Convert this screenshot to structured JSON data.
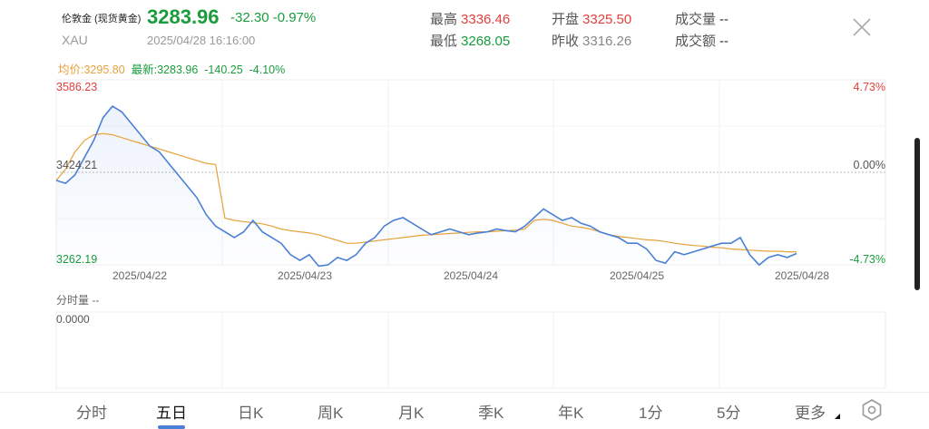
{
  "instrument": {
    "name": "伦敦金 (现货黄金)",
    "code": "XAU",
    "price": "3283.96",
    "change": "-32.30 -0.97%",
    "timestamp": "2025/04/28 16:16:00"
  },
  "stats": {
    "high_label": "最高",
    "high_value": "3336.46",
    "low_label": "最低",
    "low_value": "3268.05",
    "open_label": "开盘",
    "open_value": "3325.50",
    "prev_close_label": "昨收",
    "prev_close_value": "3316.26",
    "volume_label": "成交量",
    "volume_value": "--",
    "turnover_label": "成交额",
    "turnover_value": "--"
  },
  "summary": {
    "avg_price": "均价:3295.80",
    "latest": "最新:3283.96",
    "change": "-140.25",
    "pct": "-4.10%"
  },
  "chart_data": {
    "type": "line",
    "title": "",
    "y_max_label": "3586.23",
    "y_mid_label": "3424.21",
    "y_min_label": "3262.19",
    "pct_max_label": "4.73%",
    "pct_mid_label": "0.00%",
    "pct_min_label": "-4.73%",
    "ylim": [
      3262.19,
      3586.23
    ],
    "baseline": 3424.21,
    "x_labels": [
      "2025/04/22",
      "2025/04/23",
      "2025/04/24",
      "2025/04/25",
      "2025/04/28"
    ],
    "series": [
      {
        "values": [
          3410,
          3405,
          3420,
          3450,
          3480,
          3520,
          3540,
          3530,
          3510,
          3490,
          3470,
          3460,
          3440,
          3420,
          3400,
          3380,
          3350,
          3330,
          3320,
          3310,
          3320,
          3340,
          3320,
          3310,
          3300,
          3280,
          3270,
          3280,
          3260,
          3262,
          3275,
          3270,
          3280,
          3300,
          3310,
          3330,
          3340,
          3345,
          3335,
          3325,
          3315,
          3320,
          3325,
          3320,
          3315,
          3318,
          3320,
          3325,
          3322,
          3320,
          3330,
          3345,
          3360,
          3350,
          3340,
          3345,
          3335,
          3330,
          3320,
          3315,
          3310,
          3300,
          3300,
          3290,
          3270,
          3265,
          3285,
          3280,
          3285,
          3290,
          3295,
          3300,
          3300,
          3310,
          3280,
          3262,
          3275,
          3280,
          3275,
          3282
        ]
      },
      {
        "values": [
          3410,
          3430,
          3460,
          3480,
          3490,
          3492,
          3490,
          3485,
          3480,
          3475,
          3470,
          3465,
          3460,
          3455,
          3450,
          3445,
          3440,
          3438,
          3344,
          3340,
          3338,
          3336,
          3334,
          3330,
          3325,
          3322,
          3320,
          3318,
          3315,
          3310,
          3305,
          3300,
          3300,
          3302,
          3304,
          3306,
          3308,
          3310,
          3312,
          3314,
          3315,
          3316,
          3317,
          3318,
          3319,
          3320,
          3320,
          3321,
          3322,
          3323,
          3325,
          3340,
          3342,
          3340,
          3335,
          3330,
          3328,
          3325,
          3320,
          3315,
          3312,
          3310,
          3308,
          3306,
          3305,
          3303,
          3300,
          3298,
          3296,
          3295,
          3293,
          3292,
          3290,
          3289,
          3288,
          3287,
          3286,
          3286,
          3285,
          3285
        ]
      }
    ],
    "volume_label": "分时量 --",
    "volume_axis_label": "0.0000"
  },
  "tabs": [
    "分时",
    "五日",
    "日K",
    "周K",
    "月K",
    "季K",
    "年K",
    "1分",
    "5分",
    "更多"
  ],
  "active_tab": "五日",
  "icons": {
    "close": "close-icon",
    "settings": "settings-icon"
  },
  "colors": {
    "up": "#e0413c",
    "down": "#1a9c3c",
    "line": "#4a80d6",
    "avg_line": "#e6a23c"
  }
}
